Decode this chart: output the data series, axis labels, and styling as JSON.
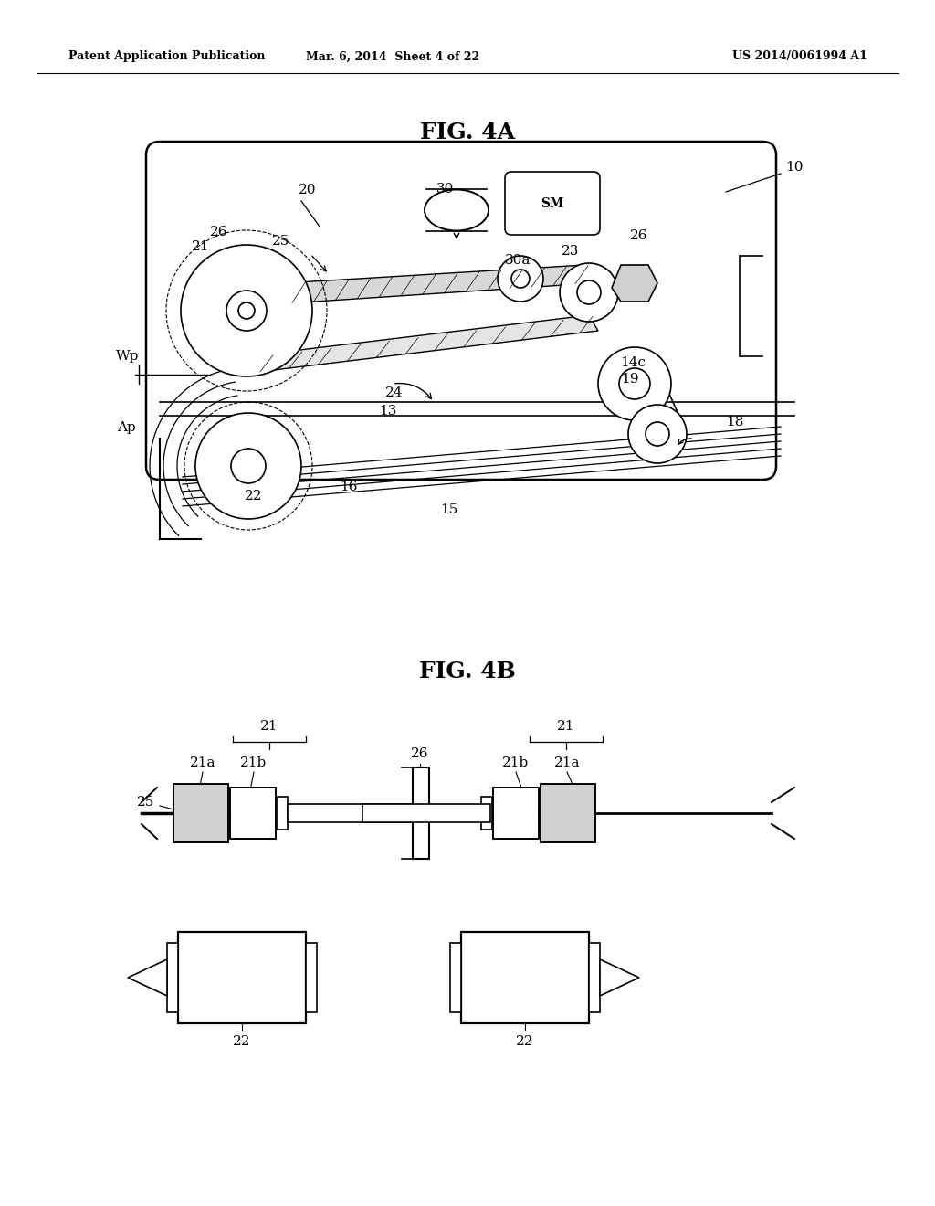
{
  "bg_color": "#ffffff",
  "line_color": "#000000",
  "header_left": "Patent Application Publication",
  "header_center": "Mar. 6, 2014  Sheet 4 of 22",
  "header_right": "US 2014/0061994 A1",
  "fig4a_title": "FIG. 4A",
  "fig4b_title": "FIG. 4B"
}
